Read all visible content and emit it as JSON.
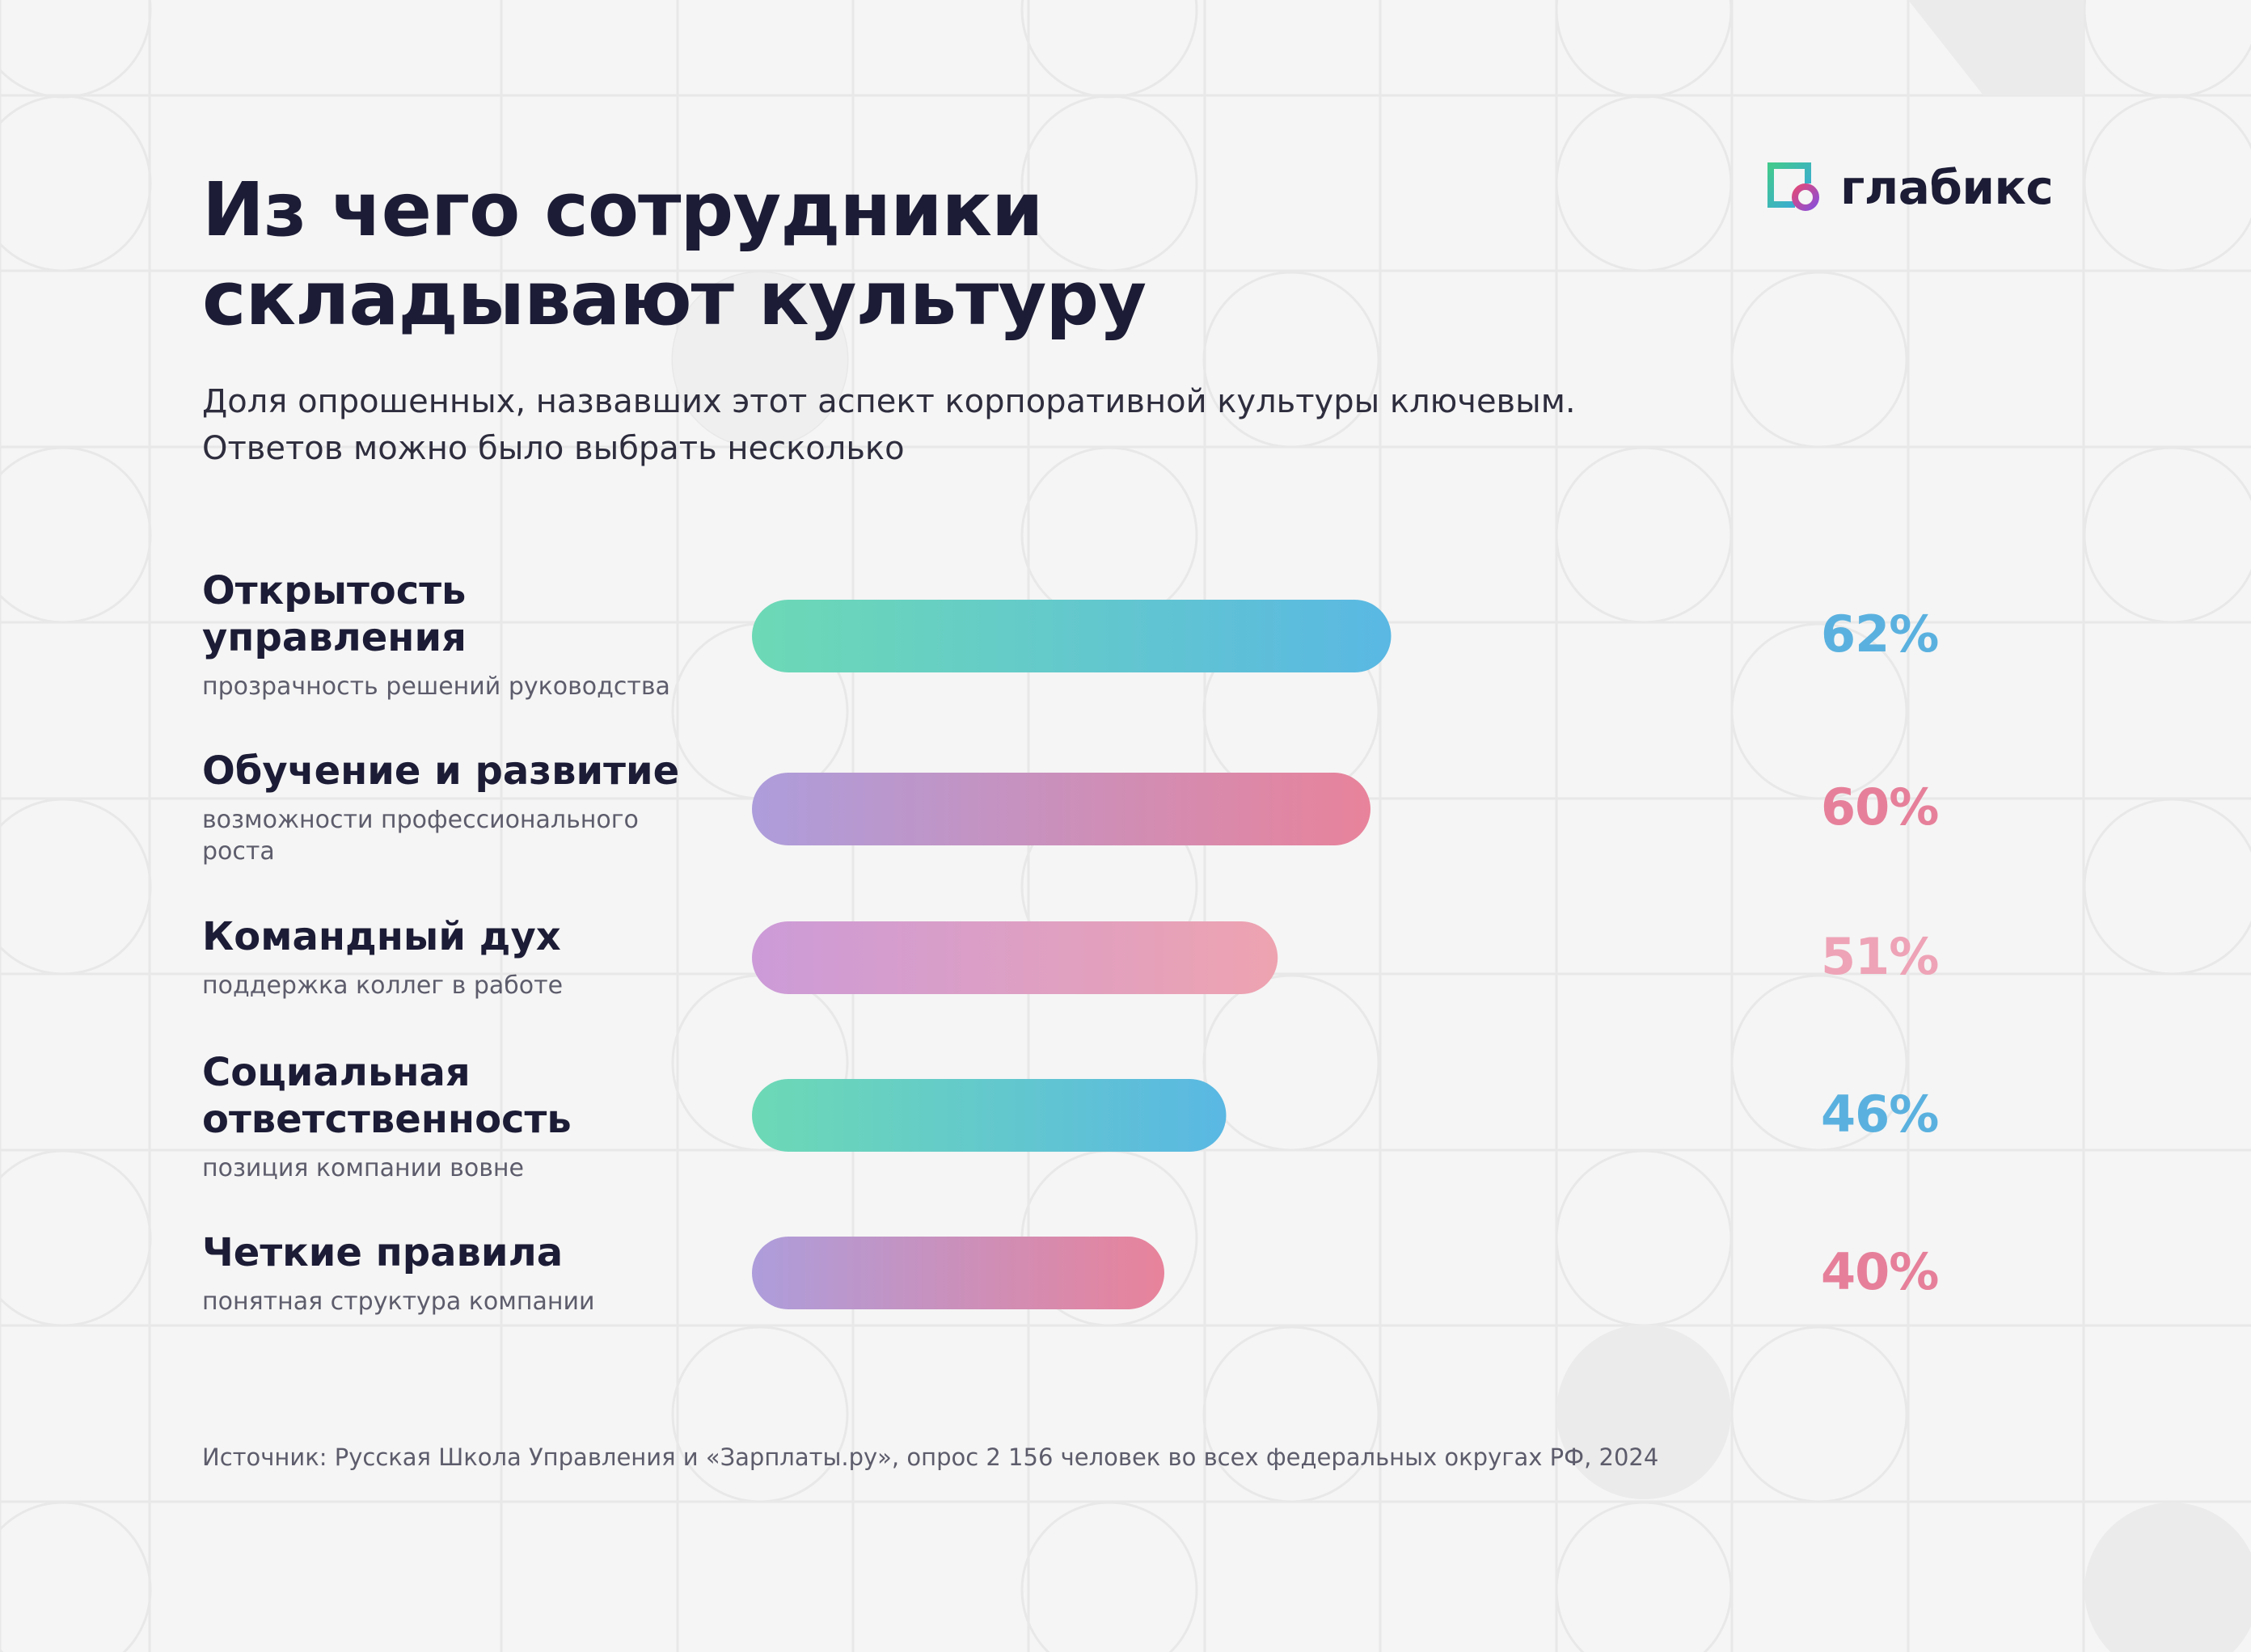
{
  "title_lines": [
    "Из чего сотрудники",
    "складывают культуру"
  ],
  "subtitle_lines": [
    "Доля опрошенных, назвавших этот аспект корпоративной культуры ключевым.",
    "Ответов можно было выбрать несколько"
  ],
  "logo": {
    "text": "глабикс",
    "icon": "glabix-logo-icon"
  },
  "source": "Источник: Русская Школа Управления и «Зарплаты.ру», опрос 2 156 человек во всех федеральных округах РФ, 2024",
  "rows": [
    {
      "title_lines": [
        "Открытость",
        "управления"
      ],
      "desc_lines": [
        "прозрачность решений руководства"
      ],
      "value_label": "62%"
    },
    {
      "title_lines": [
        "Обучение и развитие"
      ],
      "desc_lines": [
        "возможности профессионального",
        "роста"
      ],
      "value_label": "60%"
    },
    {
      "title_lines": [
        "Командный дух"
      ],
      "desc_lines": [
        "поддержка коллег в работе"
      ],
      "value_label": "51%"
    },
    {
      "title_lines": [
        "Социальная",
        "ответственность"
      ],
      "desc_lines": [
        "позиция компании вовне"
      ],
      "value_label": "46%"
    },
    {
      "title_lines": [
        "Четкие правила"
      ],
      "desc_lines": [
        "понятная структура компании"
      ],
      "value_label": "40%"
    }
  ],
  "chart_data": {
    "type": "bar",
    "orientation": "horizontal",
    "categories": [
      "Открытость управления",
      "Обучение и развитие",
      "Командный дух",
      "Социальная ответственность",
      "Четкие правила"
    ],
    "values": [
      62,
      60,
      51,
      46,
      40
    ],
    "unit": "%",
    "xlim": [
      0,
      100
    ],
    "grid": false,
    "gradients": [
      [
        "#6dd9b5",
        "#5ab8e3"
      ],
      [
        "#ad9ddb",
        "#e8839b"
      ],
      [
        "#cc9bd8",
        "#eea3b0"
      ],
      [
        "#6dd9b5",
        "#5ab8e3"
      ],
      [
        "#ad9ddb",
        "#e8839b"
      ]
    ],
    "label_colors": [
      "#5ab1df",
      "#e6809a",
      "#eea3b6",
      "#5ab1df",
      "#e6809a"
    ]
  }
}
